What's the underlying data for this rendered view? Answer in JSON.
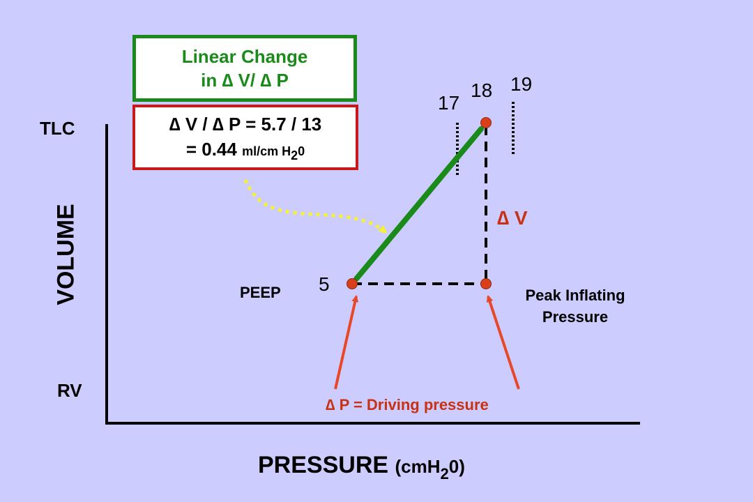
{
  "boxes": {
    "linear_line1": "Linear Change",
    "linear_line2": "in ∆ V/ ∆ P",
    "ratio_line1": "∆ V / ∆ P = 5.7 / 13",
    "ratio_value": "= 0.44",
    "ratio_unit_a": "ml/cm H",
    "ratio_unit_sub": "2",
    "ratio_unit_b": "0"
  },
  "axes": {
    "y_title": "VOLUME",
    "y_top": "TLC",
    "y_bottom": "RV",
    "x_title_main": "PRESSURE",
    "x_title_unit_a": "(cmH",
    "x_title_unit_sub": "2",
    "x_title_unit_b": "0)"
  },
  "points": {
    "peep_value": "5",
    "peep_label": "PEEP",
    "peak_value": "18",
    "left_ref": "17",
    "right_ref": "19",
    "peak_label_line1": "Peak Inflating",
    "peak_label_line2": "Pressure"
  },
  "annotations": {
    "delta_v": "∆ V",
    "delta_p": "∆ P = Driving pressure"
  },
  "colors": {
    "background": "#ccccff",
    "compliance_line": "#1a8a1a",
    "point": "#d9401a",
    "arrow": "#e8482a",
    "yellow_arrow": "#f5f03a",
    "delta_text": "#c83214"
  }
}
